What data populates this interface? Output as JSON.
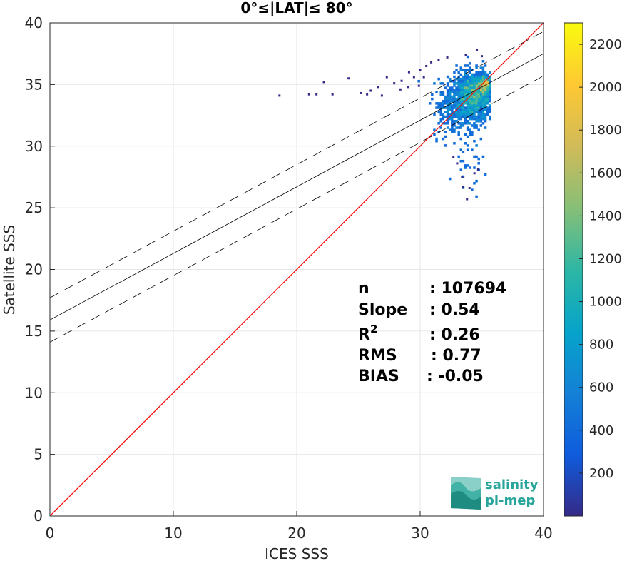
{
  "chart_data": {
    "type": "scatter",
    "title": "0°≤|LAT|≤ 80°",
    "xlabel": "ICES SSS",
    "ylabel": "Satellite SSS",
    "xlim": [
      0,
      40
    ],
    "ylim": [
      0,
      40
    ],
    "xticks": [
      0,
      10,
      20,
      30,
      40
    ],
    "yticks": [
      0,
      5,
      10,
      15,
      20,
      25,
      30,
      35,
      40
    ],
    "grid": true,
    "stats": {
      "n_label": "n",
      "n_value": ": 107694",
      "slope_label": "Slope",
      "slope_value": ": 0.54",
      "r2_label": "R",
      "r2_sup": "2",
      "r2_value": ": 0.26",
      "rms_label": "RMS",
      "rms_value": ": 0.77",
      "bias_label": "BIAS",
      "bias_value": ": -0.05"
    },
    "lines": {
      "identity": {
        "slope": 1,
        "intercept": 0,
        "color": "#ff0000"
      },
      "regression": {
        "slope": 0.54,
        "intercept": 15.9,
        "color": "#000000"
      },
      "upper_bound": {
        "slope": 0.54,
        "intercept": 17.7,
        "color": "#000000"
      },
      "lower_bound": {
        "slope": 0.54,
        "intercept": 14.1,
        "color": "#000000"
      }
    },
    "density_clusters": [
      {
        "x": 34.3,
        "y": 34.0,
        "sx": 0.9,
        "sy": 1.0,
        "n": 1400
      },
      {
        "x": 35.1,
        "y": 35.0,
        "sx": 0.35,
        "sy": 0.45,
        "n": 350
      },
      {
        "x": 32.6,
        "y": 33.0,
        "sx": 0.8,
        "sy": 1.1,
        "n": 220
      },
      {
        "x": 34.0,
        "y": 29.5,
        "sx": 0.6,
        "sy": 1.6,
        "n": 45
      }
    ],
    "sparse_points": [
      [
        18.6,
        34.1
      ],
      [
        21.0,
        34.2
      ],
      [
        21.6,
        34.2
      ],
      [
        22.2,
        35.2
      ],
      [
        22.9,
        34.2
      ],
      [
        24.2,
        35.5
      ],
      [
        25.2,
        34.3
      ],
      [
        25.7,
        34.2
      ],
      [
        26.0,
        34.5
      ],
      [
        26.6,
        34.8
      ],
      [
        26.9,
        34.1
      ],
      [
        27.3,
        35.6
      ],
      [
        27.9,
        35.1
      ],
      [
        28.4,
        34.6
      ],
      [
        28.5,
        35.3
      ],
      [
        29.0,
        34.8
      ],
      [
        29.1,
        36.0
      ],
      [
        29.5,
        35.6
      ],
      [
        29.9,
        34.9
      ],
      [
        30.0,
        36.2
      ],
      [
        30.3,
        35.6
      ],
      [
        30.5,
        36.5
      ],
      [
        30.9,
        36.8
      ],
      [
        31.5,
        37.0
      ],
      [
        32.2,
        37.2
      ],
      [
        33.7,
        37.4
      ],
      [
        34.6,
        37.8
      ],
      [
        35.0,
        37.3
      ],
      [
        34.0,
        26.6
      ],
      [
        33.5,
        26.7
      ],
      [
        33.8,
        25.7
      ],
      [
        33.4,
        27.5
      ],
      [
        34.4,
        27.8
      ],
      [
        33.0,
        28.6
      ],
      [
        34.7,
        28.1
      ],
      [
        32.7,
        29.1
      ]
    ],
    "colorbar": {
      "min": 0,
      "max": 2300,
      "ticks": [
        200,
        400,
        600,
        800,
        1000,
        1200,
        1400,
        1600,
        1800,
        2000,
        2200
      ],
      "colormap": "parula",
      "stops": [
        "#352a87",
        "#0f5cdd",
        "#1481d6",
        "#06a4ca",
        "#2eb7a4",
        "#87bf77",
        "#d1bb59",
        "#fec832",
        "#f9fb0e"
      ]
    }
  },
  "logo": {
    "line1": "salinity",
    "line2": "pi-mep",
    "color": "#27a59a"
  }
}
